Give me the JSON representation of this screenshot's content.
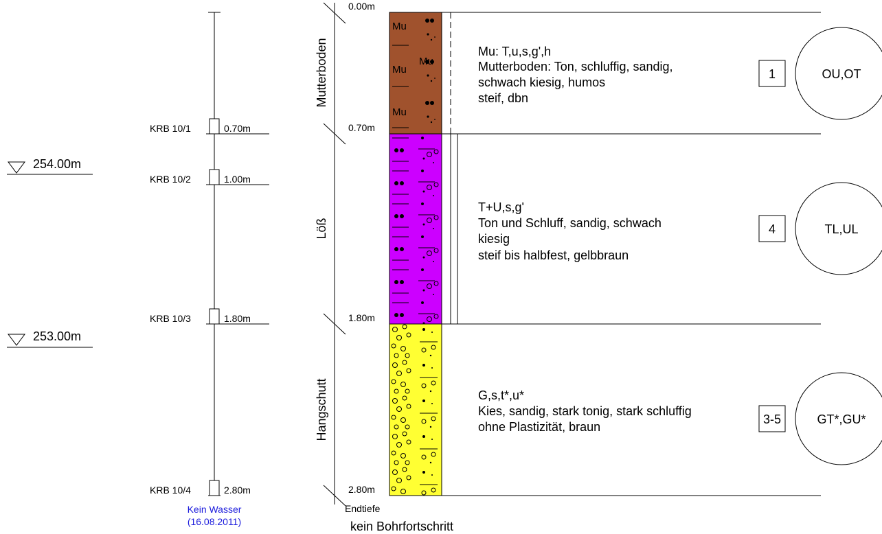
{
  "elevations": [
    {
      "label": "254.00m"
    },
    {
      "label": "253.00m"
    }
  ],
  "samples": [
    {
      "label": "KRB 10/1",
      "depth": "0.70m"
    },
    {
      "label": "KRB 10/2",
      "depth": "1.00m"
    },
    {
      "label": "KRB 10/3",
      "depth": "1.80m"
    },
    {
      "label": "KRB 10/4",
      "depth": "2.80m"
    }
  ],
  "water": {
    "line1": "Kein Wasser",
    "line2": "(16.08.2011)"
  },
  "depths": [
    "0.00m",
    "0.70m",
    "1.80m",
    "2.80m"
  ],
  "layers": [
    {
      "name": "Mutterboden",
      "color": "#a0522d",
      "desc": [
        "Mu: T,u,s,g',h",
        "Mutterboden: Ton, schluffig, sandig,",
        "schwach kiesig, humos",
        "steif, dbn"
      ],
      "class_no": "1",
      "soil_group": "OU,OT"
    },
    {
      "name": "Löß",
      "color": "#cc00ff",
      "desc": [
        "T+U,s,g'",
        "Ton und Schluff, sandig, schwach",
        "kiesig",
        "steif bis halbfest, gelbbraun"
      ],
      "class_no": "4",
      "soil_group": "TL,UL"
    },
    {
      "name": "Hangschutt",
      "color": "#ffff33",
      "desc": [
        "G,s,t*,u*",
        "Kies, sandig, stark tonig, stark schluffig",
        "ohne Plastizität, braun"
      ],
      "class_no": "3-5",
      "soil_group": "GT*,GU*"
    }
  ],
  "mu_labels": [
    "Mu",
    "Mu",
    "Mu",
    "Mu"
  ],
  "end": {
    "label": "Endtiefe",
    "note": "kein Bohrfortschritt"
  }
}
